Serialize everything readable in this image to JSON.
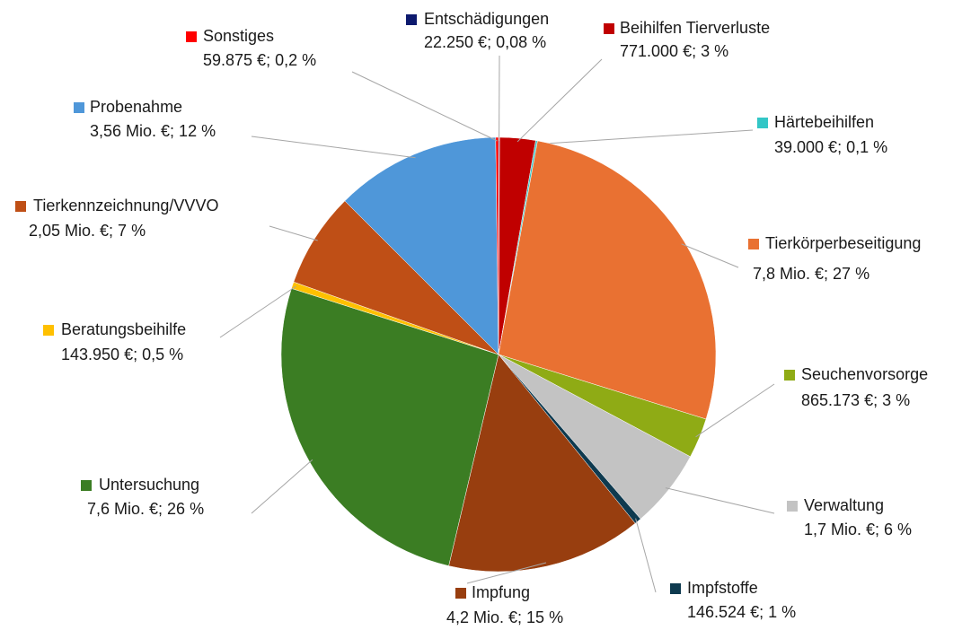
{
  "chart_data": {
    "type": "pie",
    "categories": [
      "Entschädigungen",
      "Beihilfen Tierverluste",
      "Härtebeihilfen",
      "Tierkörperbeseitigung",
      "Seuchenvorsorge",
      "Verwaltung",
      "Impfstoffe",
      "Impfung",
      "Untersuchung",
      "Beratungsbeihilfe",
      "Tierkennzeichnung/VVVO",
      "Probenahme",
      "Sonstiges"
    ],
    "values": [
      22250,
      771000,
      39000,
      7800000,
      865173,
      1700000,
      146524,
      4200000,
      7600000,
      143950,
      2050000,
      3560000,
      59875
    ],
    "value_labels": [
      "22.250 €; 0,08 %",
      "771.000 €; 3 %",
      "39.000 €; 0,1 %",
      "7,8 Mio. €; 27 %",
      "865.173 €; 3 %",
      "1,7 Mio. €; 6 %",
      "146.524 €; 1 %",
      "4,2 Mio. €; 15 %",
      "7,6 Mio. €; 26 %",
      "143.950 €; 0,5 %",
      "2,05 Mio. €; 7 %",
      "3,56 Mio. €; 12 %",
      "59.875 €; 0,2 %"
    ],
    "colors": [
      "#0d1a6e",
      "#c00000",
      "#33c6c6",
      "#e97132",
      "#8fab15",
      "#c3c3c3",
      "#0e3a4f",
      "#983e0f",
      "#3b7d23",
      "#ffc000",
      "#bf4f16",
      "#4f97d9",
      "#ff0000"
    ]
  }
}
